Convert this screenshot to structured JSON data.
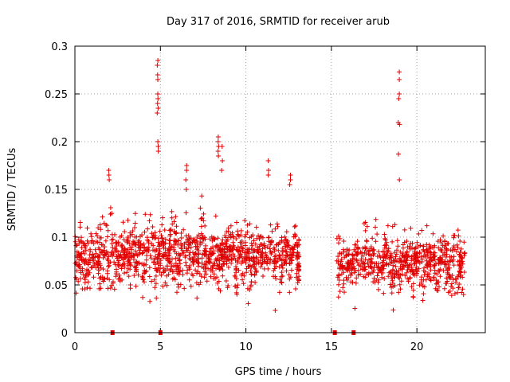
{
  "chart_data": {
    "type": "scatter",
    "title": "Day 317 of 2016, SRMTID for receiver arub",
    "xlabel": "GPS time / hours",
    "ylabel": "SRMTID / TECUs",
    "xlim": [
      0,
      24
    ],
    "ylim": [
      0,
      0.3
    ],
    "x_ticks": [
      0,
      5,
      10,
      15,
      20
    ],
    "x_tick_labels": [
      "0",
      "5",
      "10",
      "15",
      "20"
    ],
    "y_ticks": [
      0,
      0.05,
      0.1,
      0.15,
      0.2,
      0.25,
      0.3
    ],
    "y_tick_labels": [
      "0",
      "0.05",
      "0.1",
      "0.15",
      "0.2",
      "0.25",
      "0.3"
    ],
    "grid": true,
    "marker": "+",
    "color": "#e00000",
    "segments": [
      {
        "t0": 0.0,
        "t1": 13.1,
        "base": 0.082,
        "spread": 0.045
      },
      {
        "t0": 15.3,
        "t1": 22.8,
        "base": 0.075,
        "spread": 0.043
      }
    ],
    "spikes": [
      {
        "x": 4.85,
        "values": [
          0.285,
          0.28,
          0.27,
          0.265,
          0.25,
          0.245,
          0.24,
          0.235,
          0.23,
          0.2,
          0.195,
          0.19
        ]
      },
      {
        "x": 6.5,
        "values": [
          0.175,
          0.17,
          0.16,
          0.15
        ]
      },
      {
        "x": 8.4,
        "values": [
          0.205,
          0.2,
          0.195,
          0.19,
          0.185
        ]
      },
      {
        "x": 8.6,
        "values": [
          0.195,
          0.18,
          0.17
        ]
      },
      {
        "x": 11.3,
        "values": [
          0.18,
          0.17,
          0.165
        ]
      },
      {
        "x": 12.6,
        "values": [
          0.165,
          0.16,
          0.155
        ]
      },
      {
        "x": 2.0,
        "values": [
          0.17,
          0.165,
          0.16
        ]
      },
      {
        "x": 18.95,
        "values": [
          0.273,
          0.265,
          0.25,
          0.245,
          0.22,
          0.218,
          0.187,
          0.16
        ]
      }
    ],
    "zero_markers": [
      2.2,
      5.0,
      15.2,
      16.3
    ]
  }
}
